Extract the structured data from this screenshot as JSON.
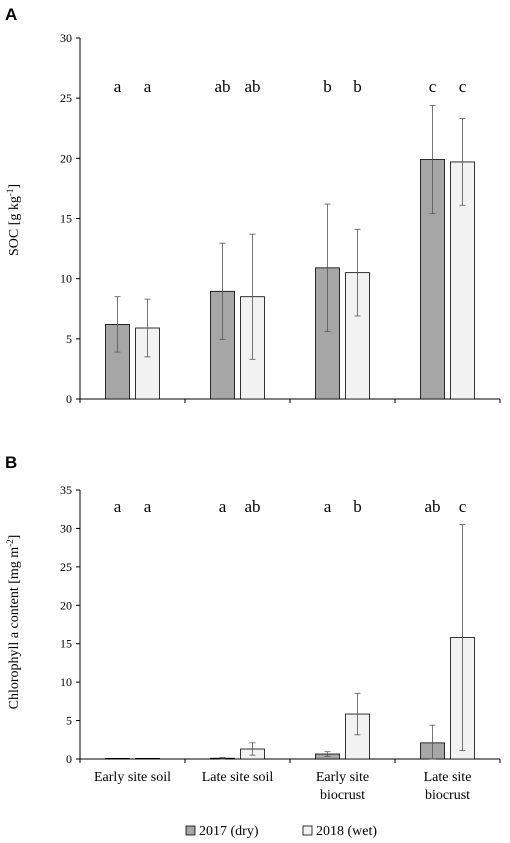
{
  "legend": {
    "series_1": "2017 (dry)",
    "series_2": "2018 (wet)",
    "series_1_color": "#a6a6a6",
    "series_2_color": "#f2f2f2"
  },
  "chart_data": [
    {
      "type": "bar",
      "panel": "A",
      "ylabel_main": "SOC [g kg",
      "ylabel_sup": "-1",
      "ylabel_end": "]",
      "ylim": [
        0,
        30
      ],
      "yticks": [
        "0",
        "5",
        "10",
        "15",
        "20",
        "25",
        "30"
      ],
      "categories": [
        "Early site soil",
        "Late site soil",
        "Early site biocrust",
        "Late site biocrust"
      ],
      "series": [
        {
          "name": "2017 (dry)",
          "values": [
            6.2,
            8.95,
            10.9,
            19.9
          ],
          "err": [
            2.3,
            4.0,
            5.3,
            4.5
          ],
          "letters": [
            "a",
            "ab",
            "b",
            "c"
          ]
        },
        {
          "name": "2018 (wet)",
          "values": [
            5.9,
            8.5,
            10.5,
            19.7
          ],
          "err": [
            2.4,
            5.2,
            3.6,
            3.6
          ],
          "letters": [
            "a",
            "ab",
            "b",
            "c"
          ]
        }
      ]
    },
    {
      "type": "bar",
      "panel": "B",
      "ylabel_main": "Chlorophyll a content [mg m",
      "ylabel_sup": "-2",
      "ylabel_end": "]",
      "ylim": [
        0,
        35
      ],
      "yticks": [
        "0",
        "5",
        "10",
        "15",
        "20",
        "25",
        "30",
        "35"
      ],
      "categories": [
        "Early site soil",
        "Late site soil",
        "Early site biocrust",
        "Late site biocrust"
      ],
      "category_lines": [
        [
          "Early site soil"
        ],
        [
          "Late site soil"
        ],
        [
          "Early site",
          "biocrust"
        ],
        [
          "Late site",
          "biocrust"
        ]
      ],
      "series": [
        {
          "name": "2017 (dry)",
          "values": [
            0.05,
            0.1,
            0.65,
            2.1
          ],
          "err": [
            0.0,
            0.1,
            0.3,
            2.3
          ],
          "letters": [
            "a",
            "a",
            "a",
            "ab"
          ]
        },
        {
          "name": "2018 (wet)",
          "values": [
            0.05,
            1.3,
            5.85,
            15.8
          ],
          "err": [
            0.0,
            0.8,
            2.7,
            14.7
          ],
          "letters": [
            "a",
            "ab",
            "b",
            "c"
          ]
        }
      ]
    }
  ]
}
